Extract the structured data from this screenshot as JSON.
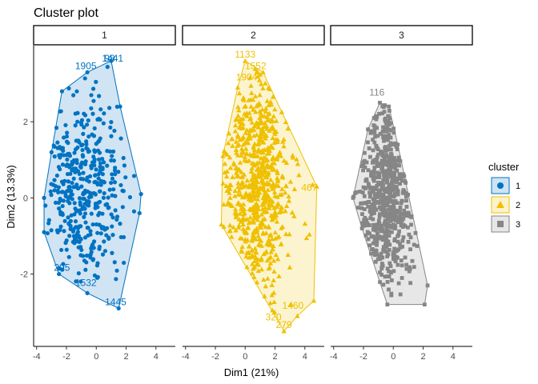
{
  "chart_data": {
    "type": "scatter",
    "title": "Cluster plot",
    "xlabel": "Dim1 (21%)",
    "ylabel": "Dim2 (13.3%)",
    "xlim": [
      -4.2,
      5.3
    ],
    "ylim": [
      -3.9,
      4.0
    ],
    "x_ticks": [
      -4,
      -2,
      0,
      2,
      4
    ],
    "y_ticks": [
      -2,
      0,
      2
    ],
    "legend": {
      "title": "cluster",
      "placement": "right"
    },
    "facets": [
      {
        "name": "1",
        "color": "#0073C2",
        "fill": "#CFE3F3",
        "marker": "circle",
        "hull": [
          [
            -0.6,
            3.3
          ],
          [
            1,
            3.6
          ],
          [
            1.6,
            2.4
          ],
          [
            3,
            0.1
          ],
          [
            2.9,
            -0.4
          ],
          [
            1.5,
            -2.9
          ],
          [
            -0.6,
            -2.5
          ],
          [
            -2.5,
            -2
          ],
          [
            -3.5,
            -0.9
          ],
          [
            -3.5,
            0
          ],
          [
            -3,
            1.2
          ],
          [
            -2.3,
            2.8
          ]
        ],
        "labels": [
          {
            "text": "1905",
            "x": -0.7,
            "y": 3.3
          },
          {
            "text": "98",
            "x": 0.9,
            "y": 3.5
          },
          {
            "text": "1441",
            "x": 1.1,
            "y": 3.5
          },
          {
            "text": "295",
            "x": -2.3,
            "y": -2
          },
          {
            "text": "1532",
            "x": -0.7,
            "y": -2.4
          },
          {
            "text": "1445",
            "x": 1.3,
            "y": -2.9
          }
        ],
        "n_points": 420,
        "center": [
          -0.9,
          0.25
        ],
        "spread": [
          1.35,
          1.3
        ],
        "seed": 11
      },
      {
        "name": "2",
        "color": "#EFC000",
        "fill": "#FCF3CC",
        "marker": "triangle",
        "hull": [
          [
            0,
            3.6
          ],
          [
            1.2,
            3.3
          ],
          [
            4.8,
            0.3
          ],
          [
            4.6,
            -2.7
          ],
          [
            3.5,
            -3.1
          ],
          [
            2.6,
            -3.5
          ],
          [
            -1.6,
            -0.7
          ],
          [
            -1.5,
            1.1
          ],
          [
            -0.5,
            2.9
          ]
        ],
        "labels": [
          {
            "text": "1133",
            "x": 0,
            "y": 3.6
          },
          {
            "text": "1552",
            "x": 0.7,
            "y": 3.3
          },
          {
            "text": "1904",
            "x": 0.1,
            "y": 3.0
          },
          {
            "text": "467",
            "x": 4.3,
            "y": 0.1
          },
          {
            "text": "1460",
            "x": 3.2,
            "y": -3.0
          },
          {
            "text": "320",
            "x": 1.9,
            "y": -3.3
          },
          {
            "text": "279",
            "x": 2.6,
            "y": -3.5
          }
        ],
        "n_points": 700,
        "center": [
          0.7,
          0.4
        ],
        "spread": [
          1.15,
          1.45
        ],
        "seed": 22
      },
      {
        "name": "3",
        "color": "#868686",
        "fill": "#E6E6E6",
        "marker": "square",
        "hull": [
          [
            -0.9,
            2.5
          ],
          [
            -0.3,
            2.4
          ],
          [
            0.3,
            1.4
          ],
          [
            2.3,
            -2.3
          ],
          [
            2.1,
            -2.8
          ],
          [
            -0.4,
            -2.8
          ],
          [
            -2.1,
            -0.8
          ],
          [
            -2.7,
            0
          ],
          [
            -1.7,
            1.8
          ]
        ],
        "labels": [
          {
            "text": "116",
            "x": -1.1,
            "y": 2.6
          }
        ],
        "n_points": 650,
        "center": [
          -0.5,
          0.1
        ],
        "spread": [
          0.95,
          1.25
        ],
        "seed": 33
      }
    ]
  }
}
